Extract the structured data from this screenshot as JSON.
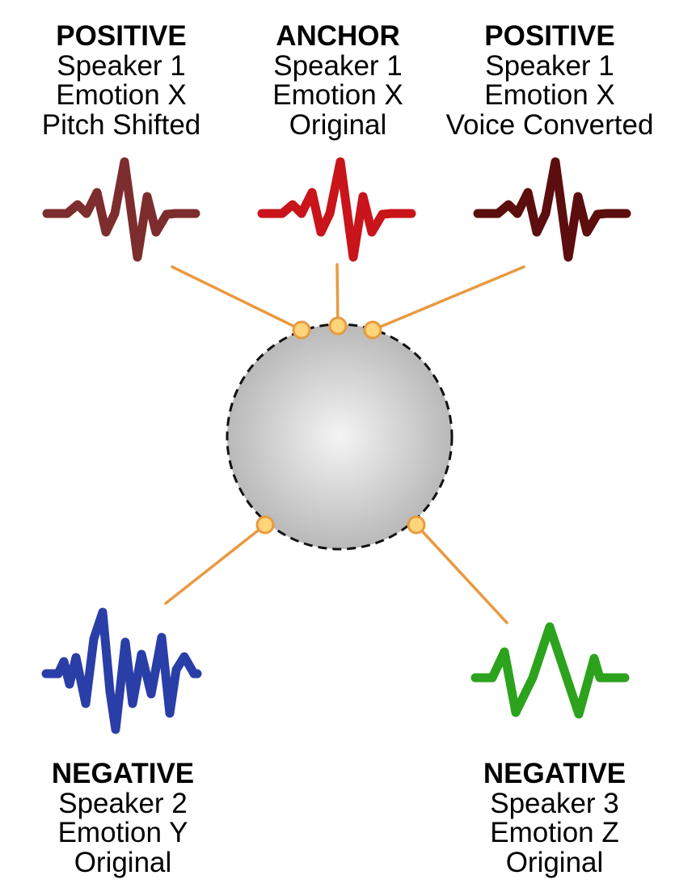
{
  "colors": {
    "positive_pitch": "#7d2d2d",
    "anchor": "#c8141a",
    "positive_vc": "#5c0d0d",
    "negative_speaker2": "#2a3ea8",
    "negative_speaker3": "#2ca21d",
    "connector": "#e89a40",
    "node_fill": "#ffd47a",
    "sphere_center": "#f4f4f4",
    "sphere_edge": "#b9b9b9"
  },
  "samples": [
    {
      "id": "positive-pitch",
      "role": "POSITIVE",
      "speaker": "Speaker 1",
      "emotion": "Emotion X",
      "variant": "Pitch Shifted"
    },
    {
      "id": "anchor",
      "role": "ANCHOR",
      "speaker": "Speaker 1",
      "emotion": "Emotion X",
      "variant": "Original"
    },
    {
      "id": "positive-vc",
      "role": "POSITIVE",
      "speaker": "Speaker 1",
      "emotion": "Emotion X",
      "variant": "Voice Converted"
    },
    {
      "id": "negative-speaker2",
      "role": "NEGATIVE",
      "speaker": "Speaker 2",
      "emotion": "Emotion Y",
      "variant": "Original"
    },
    {
      "id": "negative-speaker3",
      "role": "NEGATIVE",
      "speaker": "Speaker 3",
      "emotion": "Emotion Z",
      "variant": "Original"
    }
  ]
}
